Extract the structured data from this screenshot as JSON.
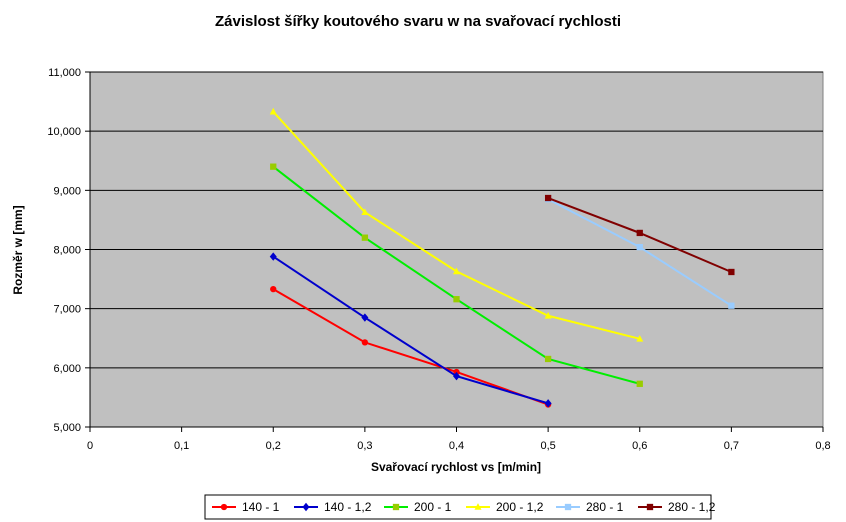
{
  "chart_data": {
    "type": "line",
    "title": "Závislost šířky koutového svaru w na svařovací rychlosti",
    "xlabel": "Svařovací rychlost vs [m/min]",
    "ylabel": "Rozměr w [mm]",
    "xlim": [
      0,
      0.8
    ],
    "ylim": [
      5,
      11
    ],
    "x_ticks": [
      {
        "value": 0,
        "label": "0"
      },
      {
        "value": 0.1,
        "label": "0,1"
      },
      {
        "value": 0.2,
        "label": "0,2"
      },
      {
        "value": 0.3,
        "label": "0,3"
      },
      {
        "value": 0.4,
        "label": "0,4"
      },
      {
        "value": 0.5,
        "label": "0,5"
      },
      {
        "value": 0.6,
        "label": "0,6"
      },
      {
        "value": 0.7,
        "label": "0,7"
      },
      {
        "value": 0.8,
        "label": "0,8"
      }
    ],
    "y_ticks": [
      {
        "value": 5,
        "label": "5,000"
      },
      {
        "value": 6,
        "label": "6,000"
      },
      {
        "value": 7,
        "label": "7,000"
      },
      {
        "value": 8,
        "label": "8,000"
      },
      {
        "value": 9,
        "label": "9,000"
      },
      {
        "value": 10,
        "label": "10,000"
      },
      {
        "value": 11,
        "label": "11,000"
      }
    ],
    "grid": "horizontal",
    "legend_position": "bottom",
    "plot_background": "#c0c0c0",
    "series": [
      {
        "name": "140 - 1",
        "color": "#ff0000",
        "marker": "circle",
        "x": [
          0.2,
          0.3,
          0.4,
          0.5
        ],
        "y": [
          7.33,
          6.43,
          5.93,
          5.38
        ]
      },
      {
        "name": "140 - 1,2",
        "color": "#0000cc",
        "marker": "diamond",
        "x": [
          0.2,
          0.3,
          0.4,
          0.5
        ],
        "y": [
          7.88,
          6.85,
          5.86,
          5.4
        ]
      },
      {
        "name": "200 - 1",
        "color": "#00ee00",
        "marker": "square",
        "marker_color": "#99cc00",
        "x": [
          0.2,
          0.3,
          0.4,
          0.5,
          0.6
        ],
        "y": [
          9.4,
          8.2,
          7.16,
          6.15,
          5.73
        ]
      },
      {
        "name": "200 - 1,2",
        "color": "#ffff00",
        "marker": "triangle",
        "x": [
          0.2,
          0.3,
          0.4,
          0.5,
          0.6
        ],
        "y": [
          10.33,
          8.63,
          7.63,
          6.88,
          6.49
        ]
      },
      {
        "name": "280 - 1",
        "color": "#99ccff",
        "marker": "square",
        "x": [
          0.5,
          0.6,
          0.7
        ],
        "y": [
          8.85,
          8.04,
          7.05
        ]
      },
      {
        "name": "280 - 1,2",
        "color": "#800000",
        "marker": "square",
        "x": [
          0.5,
          0.6,
          0.7
        ],
        "y": [
          8.87,
          8.28,
          7.62
        ]
      }
    ]
  }
}
